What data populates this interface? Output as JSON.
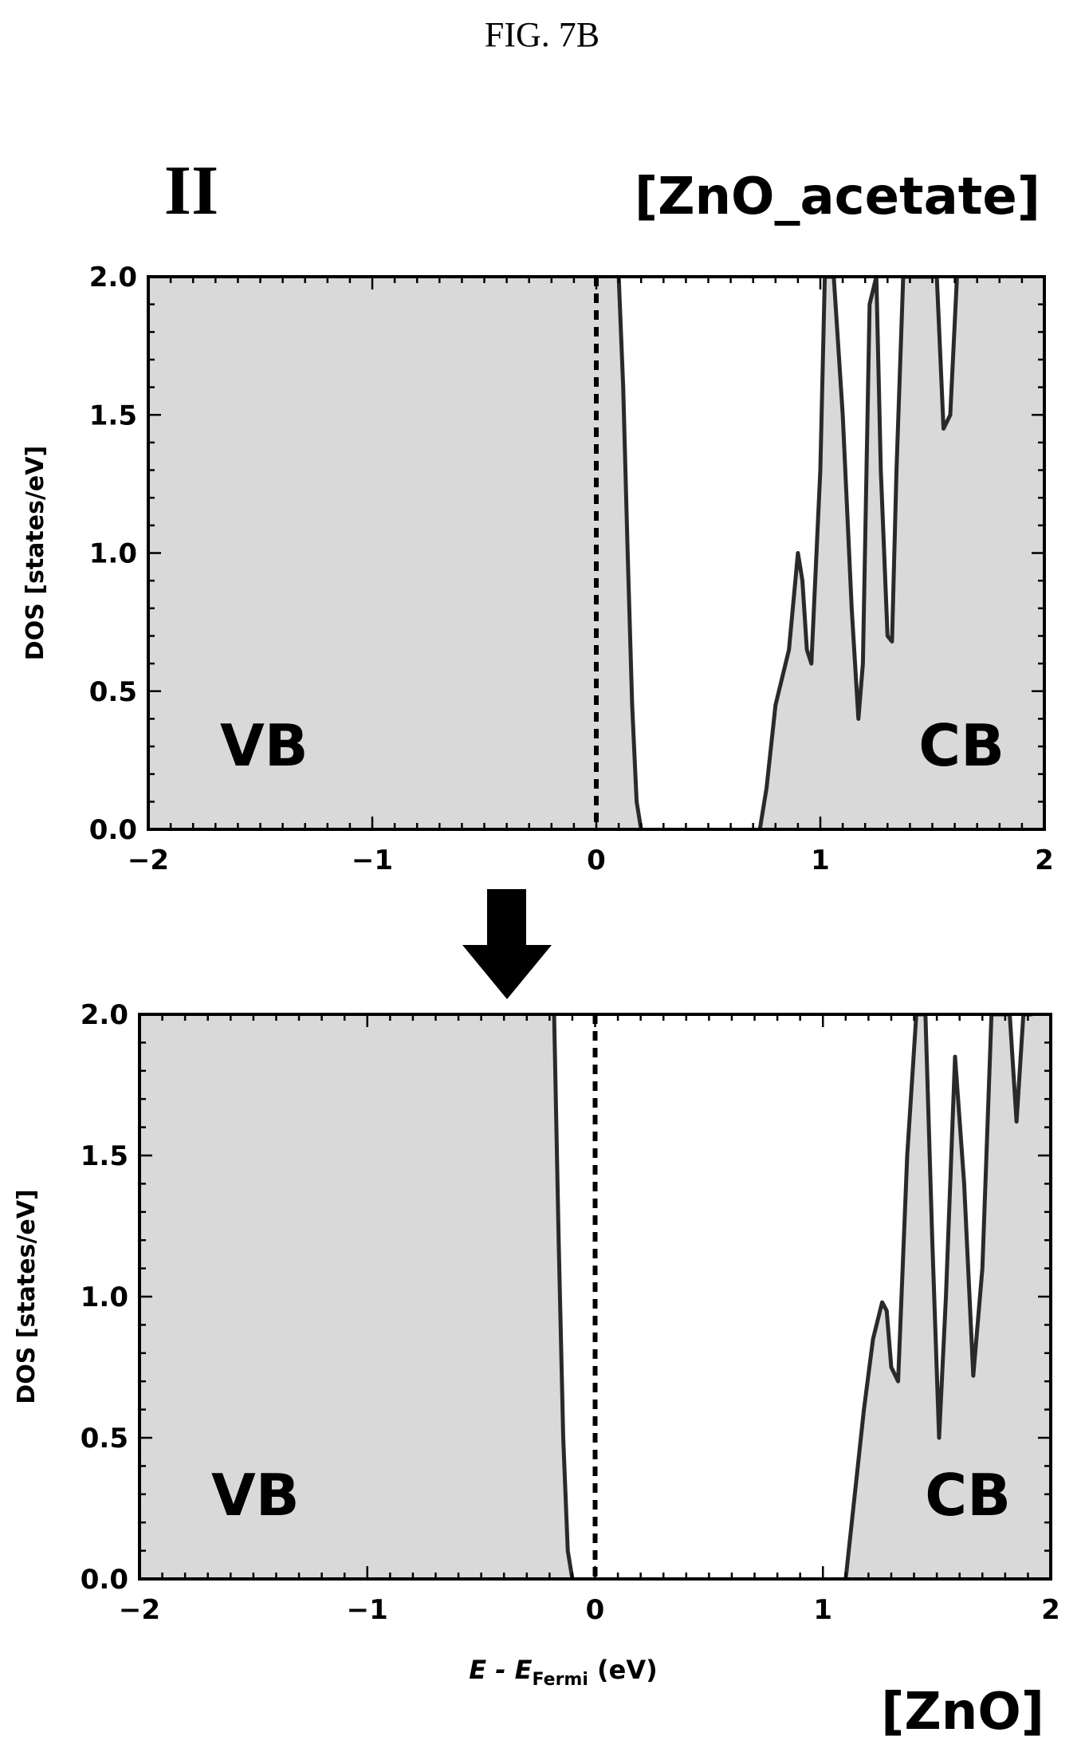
{
  "figure_label": "FIG. 7B",
  "panel_mark": "II",
  "material_top": "[ZnO_acetate]",
  "material_bottom": "[ZnO]",
  "colors": {
    "fill": "#d9d9d9",
    "line": "#2a2a2a",
    "frame": "#000000",
    "arrow": "#000000"
  },
  "icons": {
    "arrow": "down-arrow-icon"
  },
  "chart_data": [
    {
      "type": "area",
      "title": "[ZnO_acetate]",
      "ylabel": "DOS [states/eV]",
      "xlabel": "",
      "xlim": [
        -2,
        2
      ],
      "ylim": [
        0,
        2.0
      ],
      "xticks": [
        -2,
        -1,
        0,
        1,
        2
      ],
      "yticks": [
        "0.0",
        "0.5",
        "1.0",
        "1.5",
        "2.0"
      ],
      "fermi_level": 0,
      "annotations": [
        "VB",
        "CB"
      ],
      "vb_curve": {
        "x": [
          0.1,
          0.12,
          0.14,
          0.16,
          0.18,
          0.2
        ],
        "y": [
          2.0,
          1.6,
          1.0,
          0.45,
          0.1,
          0.0
        ]
      },
      "cb_curve": {
        "x": [
          0.73,
          0.76,
          0.8,
          0.83,
          0.86,
          0.9,
          0.92,
          0.94,
          0.96,
          1.0,
          1.02,
          1.06,
          1.1,
          1.14,
          1.17,
          1.19,
          1.22,
          1.25,
          1.27,
          1.3,
          1.32,
          1.34,
          1.37,
          1.4,
          1.43,
          1.45,
          1.48,
          1.52,
          1.55,
          1.58,
          1.61
        ],
        "y": [
          0.0,
          0.15,
          0.45,
          0.55,
          0.65,
          1.0,
          0.9,
          0.65,
          0.6,
          1.3,
          2.0,
          2.0,
          1.5,
          0.8,
          0.4,
          0.6,
          1.9,
          2.0,
          1.3,
          0.7,
          0.68,
          1.3,
          2.0,
          2.0,
          2.0,
          2.0,
          2.0,
          2.0,
          1.45,
          1.5,
          2.0
        ]
      }
    },
    {
      "type": "area",
      "title": "[ZnO]",
      "ylabel": "DOS [states/eV]",
      "xlabel": "E - E_Fermi (eV)",
      "xlim": [
        -2,
        2
      ],
      "ylim": [
        0,
        2.0
      ],
      "xticks": [
        -2,
        -1,
        0,
        1,
        2
      ],
      "yticks": [
        "0.0",
        "0.5",
        "1.0",
        "1.5",
        "2.0"
      ],
      "fermi_level": 0,
      "annotations": [
        "VB",
        "CB"
      ],
      "vb_curve": {
        "x": [
          -0.18,
          -0.16,
          -0.14,
          -0.12,
          -0.1
        ],
        "y": [
          2.0,
          1.2,
          0.5,
          0.1,
          0.0
        ]
      },
      "cb_curve": {
        "x": [
          1.1,
          1.14,
          1.18,
          1.22,
          1.26,
          1.28,
          1.3,
          1.33,
          1.37,
          1.41,
          1.45,
          1.48,
          1.51,
          1.54,
          1.58,
          1.62,
          1.66,
          1.7,
          1.74,
          1.78,
          1.82,
          1.85,
          1.88,
          1.92
        ],
        "y": [
          0.0,
          0.3,
          0.6,
          0.85,
          0.98,
          0.95,
          0.75,
          0.7,
          1.5,
          2.0,
          2.0,
          1.2,
          0.5,
          1.0,
          1.85,
          1.4,
          0.72,
          1.1,
          2.0,
          2.0,
          2.0,
          1.62,
          2.0,
          2.0
        ]
      }
    }
  ]
}
